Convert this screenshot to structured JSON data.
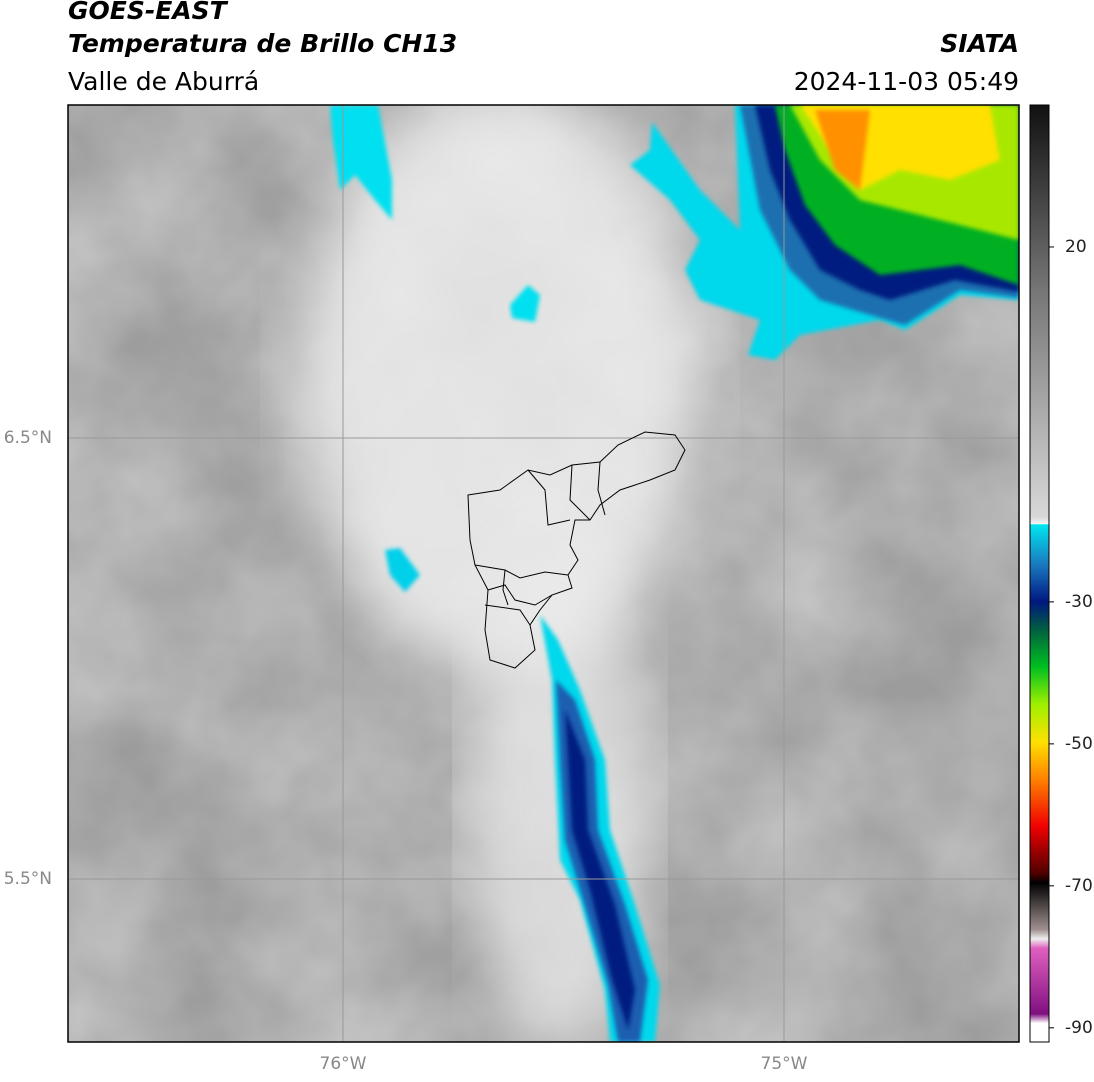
{
  "header": {
    "title": "GOES-EAST",
    "subtitle": "Temperatura de Brillo CH13",
    "region": "Valle de Aburrá",
    "source": "SIATA",
    "datetime": "2024-11-03 05:49"
  },
  "map": {
    "lat_labels": [
      "6.5°N",
      "5.5°N"
    ],
    "lon_labels": [
      "76°W",
      "75°W"
    ]
  },
  "colorbar": {
    "range": [
      -92,
      40
    ],
    "ticks": [
      20,
      -30,
      -50,
      -70,
      -90
    ]
  }
}
